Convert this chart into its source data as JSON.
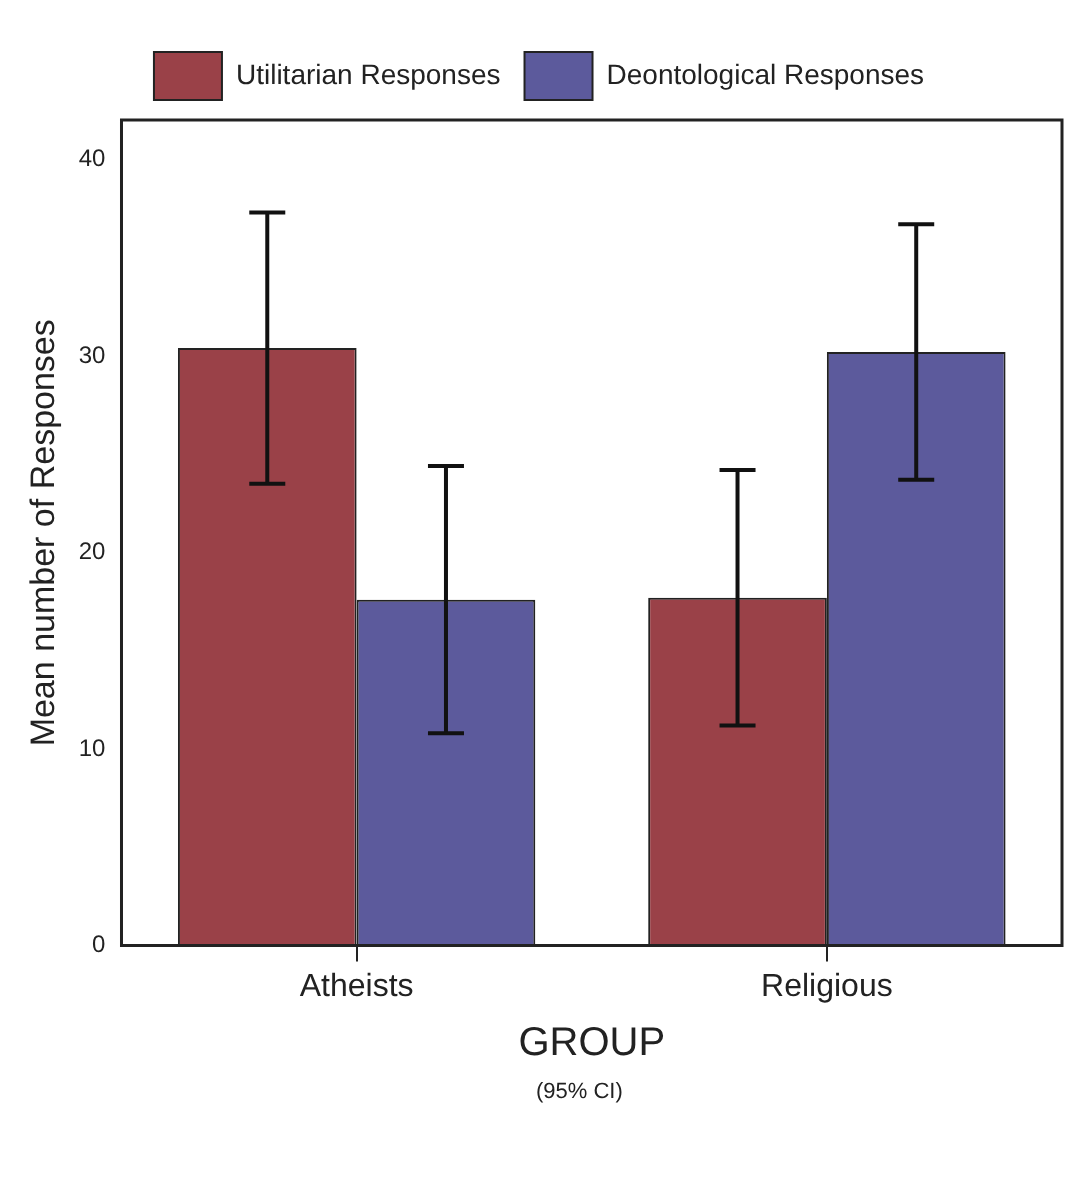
{
  "chart_data": {
    "type": "bar",
    "xlabel": "GROUP",
    "ylabel": "Mean number of Responses",
    "annotations": [
      "(95% CI)"
    ],
    "categories": [
      "Atheists",
      "Religious"
    ],
    "series": [
      {
        "name": "Utilitarian Responses",
        "color": "#9a4148",
        "values": [
          30.4,
          17.7
        ],
        "errors": [
          [
            23.5,
            37.3
          ],
          [
            11.2,
            24.2
          ]
        ]
      },
      {
        "name": "Deontological Responses",
        "color": "#5c5a9c",
        "values": [
          17.6,
          30.2
        ],
        "errors": [
          [
            10.8,
            24.4
          ],
          [
            23.7,
            36.7
          ]
        ]
      }
    ],
    "ylim": [
      0,
      42
    ],
    "yticks": [
      0,
      10,
      20,
      30,
      40
    ],
    "grid": false,
    "legend": "top"
  }
}
